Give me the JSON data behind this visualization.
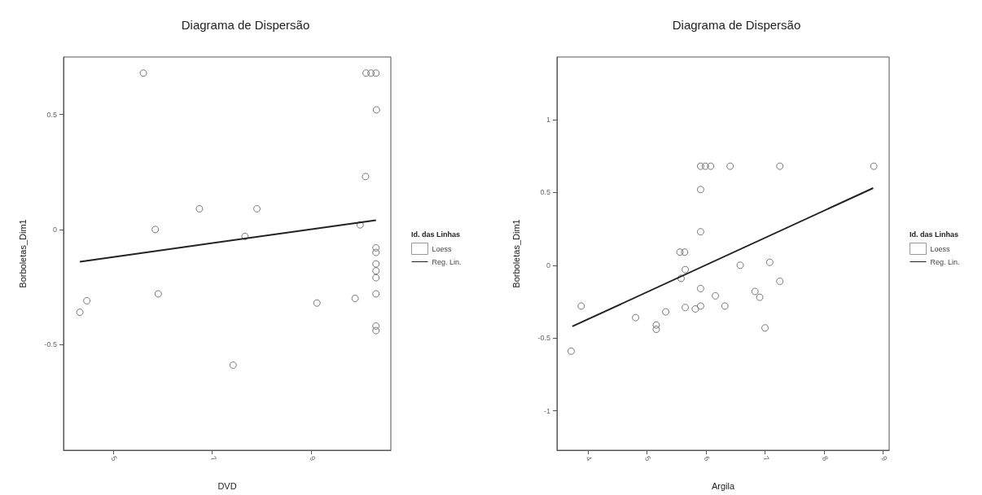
{
  "chart_data": [
    {
      "type": "scatter",
      "title": "Diagrama de Dispersão",
      "xlabel": "DVD",
      "ylabel": "Borboletas_Dim1",
      "legend_title": "Id. das Linhas",
      "legend": "right",
      "xlim": [
        4.0,
        10.6
      ],
      "xticks": [
        5,
        7,
        9
      ],
      "ylim": [
        -0.96,
        0.75
      ],
      "yticks": [
        -0.5,
        0.0,
        0.5
      ],
      "series": [
        {
          "marker": "circle",
          "color": "#555555",
          "x": [
            5.61,
            10.1,
            10.2,
            10.3,
            10.31,
            10.09,
            9.98,
            6.74,
            7.9,
            5.85,
            7.66,
            5.91,
            4.33,
            4.47,
            7.42,
            9.11,
            9.88,
            10.3,
            10.3,
            10.3,
            10.3,
            10.3,
            10.3,
            10.3,
            10.3
          ],
          "values": [
            0.68,
            0.68,
            0.68,
            0.68,
            0.52,
            0.23,
            0.02,
            0.09,
            0.09,
            0.0,
            -0.03,
            -0.28,
            -0.36,
            -0.31,
            -0.59,
            -0.32,
            -0.3,
            -0.08,
            -0.1,
            -0.15,
            -0.18,
            -0.21,
            -0.28,
            -0.42,
            -0.44
          ]
        },
        {
          "type": "line",
          "name": "Loess",
          "color": "#ffffff"
        },
        {
          "type": "line",
          "name": "Reg. Lin.",
          "color": "#222222",
          "x": [
            4.33,
            10.3
          ],
          "values": [
            -0.14,
            0.04
          ]
        }
      ]
    },
    {
      "type": "scatter",
      "title": "Diagrama de Dispersão",
      "xlabel": "Argila",
      "ylabel": "Borboletas_Dim1",
      "legend_title": "Id. das Linhas",
      "legend": "right",
      "xlim": [
        3.48,
        9.1
      ],
      "xticks": [
        4,
        5,
        6,
        7,
        8,
        9
      ],
      "ylim": [
        -1.27,
        1.43
      ],
      "yticks": [
        -1.0,
        -0.5,
        0.0,
        0.5,
        1.0
      ],
      "series": [
        {
          "marker": "circle",
          "color": "#555555",
          "x": [
            3.72,
            3.89,
            4.81,
            5.16,
            5.16,
            5.32,
            5.56,
            5.64,
            5.58,
            5.65,
            5.65,
            5.82,
            5.91,
            5.91,
            5.91,
            5.91,
            5.91,
            5.99,
            6.08,
            6.16,
            6.32,
            6.41,
            6.58,
            6.83,
            6.91,
            7.0,
            7.08,
            7.25,
            7.25,
            8.84
          ],
          "values": [
            -0.59,
            -0.28,
            -0.36,
            -0.41,
            -0.44,
            -0.32,
            0.09,
            0.09,
            -0.09,
            -0.03,
            -0.29,
            -0.3,
            -0.28,
            -0.16,
            0.23,
            0.52,
            0.68,
            0.68,
            0.68,
            -0.21,
            -0.28,
            0.68,
            0.0,
            -0.18,
            -0.22,
            -0.43,
            0.02,
            -0.11,
            0.68,
            0.68
          ]
        },
        {
          "type": "line",
          "name": "Loess",
          "color": "#ffffff"
        },
        {
          "type": "line",
          "name": "Reg. Lin.",
          "color": "#222222",
          "x": [
            3.74,
            8.83
          ],
          "values": [
            -0.42,
            0.53
          ]
        }
      ]
    }
  ]
}
